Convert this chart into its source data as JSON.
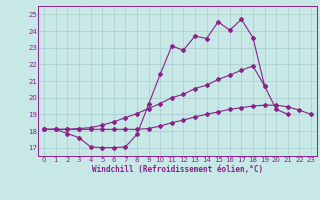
{
  "xlabel": "Windchill (Refroidissement éolien,°C)",
  "xlim": [
    -0.5,
    23.5
  ],
  "ylim": [
    16.5,
    25.5
  ],
  "yticks": [
    17,
    18,
    19,
    20,
    21,
    22,
    23,
    24,
    25
  ],
  "xticks": [
    0,
    1,
    2,
    3,
    4,
    5,
    6,
    7,
    8,
    9,
    10,
    11,
    12,
    13,
    14,
    15,
    16,
    17,
    18,
    19,
    20,
    21,
    22,
    23
  ],
  "bg_color": "#c8e8e8",
  "line_color": "#882288",
  "grid_color": "#aacccc",
  "line1_y": [
    18.1,
    18.1,
    17.85,
    17.6,
    17.05,
    17.0,
    17.0,
    17.05,
    17.8,
    19.6,
    21.4,
    23.1,
    22.85,
    23.7,
    23.55,
    24.55,
    24.05,
    24.7,
    23.6,
    20.7,
    null,
    null,
    null,
    null
  ],
  "line2_y": [
    18.1,
    18.1,
    18.1,
    18.15,
    18.2,
    18.35,
    18.55,
    18.8,
    19.05,
    19.35,
    19.65,
    20.0,
    20.2,
    20.55,
    20.75,
    21.1,
    21.35,
    21.65,
    21.9,
    20.7,
    19.3,
    19.0,
    null,
    null
  ],
  "line3_y": [
    18.1,
    18.1,
    18.1,
    18.1,
    18.1,
    18.1,
    18.1,
    18.1,
    18.1,
    18.15,
    18.3,
    18.5,
    18.65,
    18.85,
    19.0,
    19.15,
    19.3,
    19.4,
    19.5,
    19.55,
    19.55,
    19.45,
    19.25,
    19.0
  ]
}
